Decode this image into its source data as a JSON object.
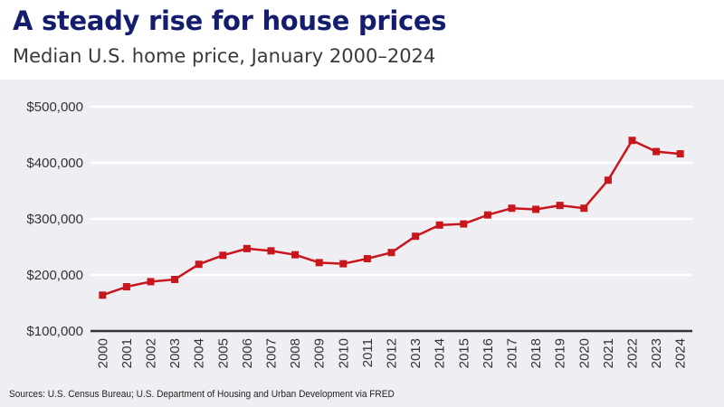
{
  "header": {
    "title": "A steady rise for house prices",
    "subtitle": "Median U.S. home price, January 2000–2024"
  },
  "footer": {
    "source": "Sources: U.S. Census Bureau; U.S. Department of Housing and Urban Development via FRED"
  },
  "colors": {
    "line": "#c8161d",
    "title": "#141c6e",
    "panel": "#efeef3"
  },
  "chart_data": {
    "type": "line",
    "title": "A steady rise for house prices",
    "subtitle": "Median U.S. home price, January 2000–2024",
    "xlabel": "",
    "ylabel": "",
    "x": [
      2000,
      2001,
      2002,
      2003,
      2004,
      2005,
      2006,
      2007,
      2008,
      2009,
      2010,
      2011,
      2012,
      2013,
      2014,
      2015,
      2016,
      2017,
      2018,
      2019,
      2020,
      2021,
      2022,
      2023,
      2024
    ],
    "values": [
      164000,
      179000,
      188000,
      192000,
      219000,
      235000,
      247000,
      243000,
      236000,
      222000,
      220000,
      229000,
      240000,
      269000,
      289000,
      291000,
      307000,
      319000,
      317000,
      324000,
      319000,
      369000,
      440000,
      420000,
      416000
    ],
    "ylim": [
      100000,
      500000
    ],
    "yticks": [
      100000,
      200000,
      300000,
      400000,
      500000
    ],
    "ytick_labels": [
      "$100,000",
      "$200,000",
      "$300,000",
      "$400,000",
      "$500,000"
    ],
    "grid": true,
    "marker": "square",
    "legend": "none"
  }
}
